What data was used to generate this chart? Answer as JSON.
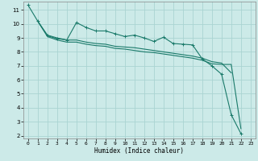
{
  "xlabel": "Humidex (Indice chaleur)",
  "xlim": [
    -0.5,
    23.5
  ],
  "ylim": [
    1.8,
    11.6
  ],
  "yticks": [
    2,
    3,
    4,
    5,
    6,
    7,
    8,
    9,
    10,
    11
  ],
  "xticks": [
    0,
    1,
    2,
    3,
    4,
    5,
    6,
    7,
    8,
    9,
    10,
    11,
    12,
    13,
    14,
    15,
    16,
    17,
    18,
    19,
    20,
    21,
    22,
    23
  ],
  "bg_color": "#cceae8",
  "grid_color": "#aad4d2",
  "line_color": "#1a7a6a",
  "lines": [
    {
      "x": [
        0,
        1,
        2,
        3,
        4,
        5,
        6,
        7,
        8,
        9,
        10,
        11,
        12,
        13,
        14,
        15,
        16,
        17,
        18,
        19,
        20,
        21,
        22
      ],
      "y": [
        11.35,
        10.2,
        9.15,
        8.95,
        8.85,
        10.1,
        9.75,
        9.5,
        9.5,
        9.3,
        9.1,
        9.2,
        9.0,
        8.75,
        9.05,
        8.6,
        8.55,
        8.5,
        7.5,
        7.0,
        6.4,
        3.5,
        2.15
      ],
      "marker": true
    },
    {
      "x": [
        1,
        2,
        3,
        4,
        5,
        6,
        7,
        8,
        9,
        10,
        11,
        12,
        13,
        14,
        15,
        16,
        17,
        18,
        19,
        20,
        21
      ],
      "y": [
        10.2,
        9.2,
        9.0,
        8.85,
        8.85,
        8.7,
        8.6,
        8.55,
        8.4,
        8.35,
        8.3,
        8.2,
        8.1,
        8.0,
        7.9,
        7.8,
        7.7,
        7.55,
        7.3,
        7.2,
        6.5
      ],
      "marker": false
    },
    {
      "x": [
        1,
        2,
        3,
        4,
        5,
        6,
        7,
        8,
        9,
        10,
        11,
        12,
        13,
        14,
        15,
        16,
        17,
        18,
        19,
        20,
        21,
        22
      ],
      "y": [
        10.2,
        9.1,
        8.85,
        8.7,
        8.7,
        8.55,
        8.45,
        8.4,
        8.25,
        8.2,
        8.1,
        8.0,
        7.95,
        7.85,
        7.75,
        7.65,
        7.55,
        7.4,
        7.15,
        7.1,
        7.1,
        2.5
      ],
      "marker": false
    }
  ]
}
